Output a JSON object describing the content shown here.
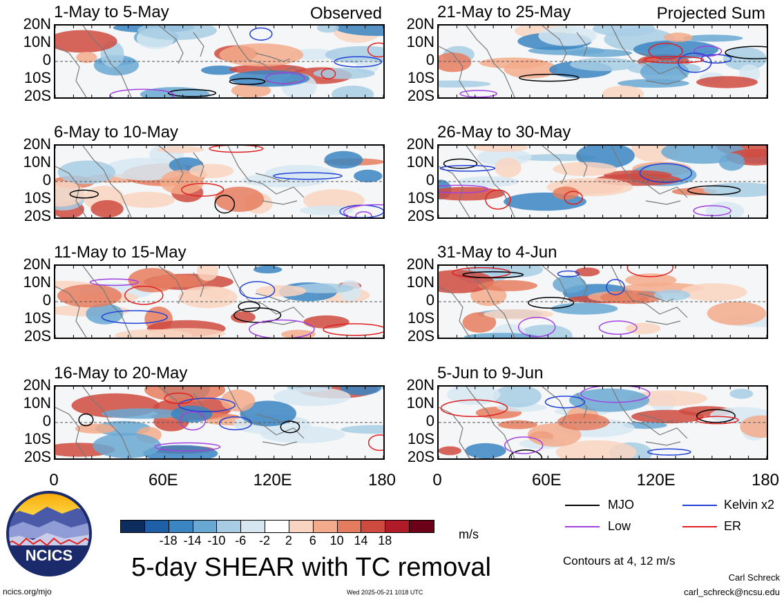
{
  "panels": [
    {
      "title": "1-May to 5-May",
      "tag": "Observed"
    },
    {
      "title": "21-May to 25-May",
      "tag": "Projected Sum"
    },
    {
      "title": "6-May to 10-May",
      "tag": ""
    },
    {
      "title": "26-May to 30-May",
      "tag": ""
    },
    {
      "title": "11-May to 15-May",
      "tag": ""
    },
    {
      "title": "31-May to 4-Jun",
      "tag": ""
    },
    {
      "title": "16-May to 20-May",
      "tag": ""
    },
    {
      "title": "5-Jun to 9-Jun",
      "tag": ""
    }
  ],
  "lat_labels": [
    "20N",
    "10N",
    "0",
    "10S",
    "20S"
  ],
  "lon_labels": [
    "0",
    "60E",
    "120E",
    "180"
  ],
  "legend": [
    {
      "label": "MJO",
      "color": "#000000"
    },
    {
      "label": "Kelvin x2",
      "color": "#1f3fd6"
    },
    {
      "label": "Low",
      "color": "#a040e0"
    },
    {
      "label": "ER",
      "color": "#e02020"
    }
  ],
  "colorbar": {
    "ticks": [
      "-18",
      "-14",
      "-10",
      "-6",
      "-2",
      "2",
      "6",
      "10",
      "14",
      "18"
    ],
    "colors": [
      "#0c2d5e",
      "#1f5fa8",
      "#3a85c2",
      "#6aa8d4",
      "#a7cce4",
      "#d6e7f2",
      "#ffffff",
      "#f9d5c1",
      "#f3ab8b",
      "#e57c5f",
      "#cf4a3f",
      "#b01b2a",
      "#6b0018"
    ],
    "unit": "m/s"
  },
  "main_title": "5-day SHEAR with TC removal",
  "contours_note": "Contours at 4, 12 m/s",
  "logo_text": "NCICS",
  "footer": {
    "left": "ncics.org/mjo",
    "center": "Wed 2025-05-21 1018 UTC",
    "author": "Carl Schreck",
    "email": "carl_schreck@ncsu.edu"
  }
}
